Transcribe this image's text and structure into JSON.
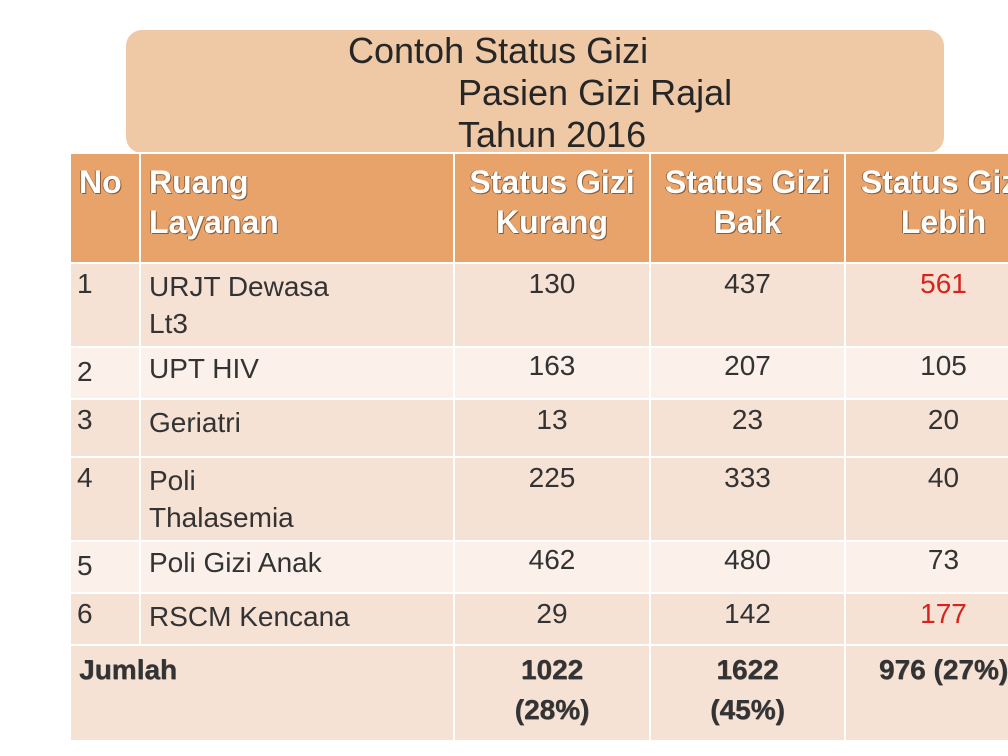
{
  "title": {
    "line1": "Contoh Status Gizi",
    "line2": "Pasien Gizi Rajal",
    "line3": "Tahun 2016"
  },
  "table": {
    "headers": {
      "no": "No",
      "ruang": "Ruang Layanan",
      "kurang": "Status Gizi Kurang",
      "baik": "Status Gizi Baik",
      "lebih": "Status Gizi Lebih"
    },
    "rows": [
      {
        "no": "1",
        "ruang": "URJT Dewasa Lt3",
        "kurang": "130",
        "baik": "437",
        "lebih": "561"
      },
      {
        "no": "2",
        "ruang": "UPT HIV",
        "kurang": "163",
        "baik": "207",
        "lebih": "105"
      },
      {
        "no": "3",
        "ruang": "Geriatri",
        "kurang": "13",
        "baik": "23",
        "lebih": "20"
      },
      {
        "no": "4",
        "ruang": "Poli Thalasemia",
        "kurang": "225",
        "baik": "333",
        "lebih": "40"
      },
      {
        "no": "5",
        "ruang": "Poli Gizi Anak",
        "kurang": "462",
        "baik": "480",
        "lebih": "73"
      },
      {
        "no": "6",
        "ruang": "RSCM Kencana",
        "kurang": "29",
        "baik": "142",
        "lebih": "177"
      }
    ],
    "total": {
      "label": "Jumlah",
      "kurang": "1022 (28%)",
      "baik": "1622 (45%)",
      "lebih": "976 (27%)"
    },
    "highlight_color": "#d8231d"
  }
}
